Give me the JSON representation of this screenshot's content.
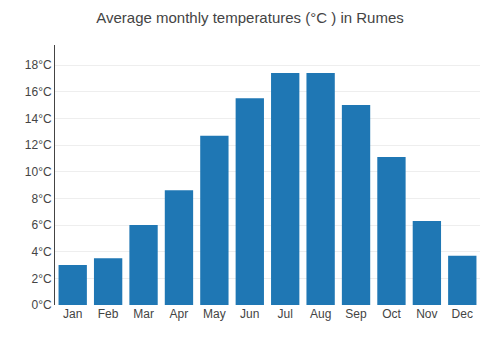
{
  "chart_data": {
    "type": "bar",
    "title": "Average monthly temperatures (°C ) in Rumes",
    "categories": [
      "Jan",
      "Feb",
      "Mar",
      "Apr",
      "May",
      "Jun",
      "Jul",
      "Aug",
      "Sep",
      "Oct",
      "Nov",
      "Dec"
    ],
    "values": [
      3.0,
      3.5,
      6.0,
      8.6,
      12.7,
      15.5,
      17.4,
      17.4,
      15.0,
      11.1,
      6.3,
      3.7
    ],
    "ylim": [
      0,
      19.5
    ],
    "yticks": [
      {
        "value": 0,
        "label": "0°C"
      },
      {
        "value": 2,
        "label": "2°C"
      },
      {
        "value": 4,
        "label": "4°C"
      },
      {
        "value": 6,
        "label": "6°C"
      },
      {
        "value": 8,
        "label": "8°C"
      },
      {
        "value": 10,
        "label": "10°C"
      },
      {
        "value": 12,
        "label": "12°C"
      },
      {
        "value": 14,
        "label": "14°C"
      },
      {
        "value": 16,
        "label": "16°C"
      },
      {
        "value": 18,
        "label": "18°C"
      }
    ],
    "grid": true
  }
}
